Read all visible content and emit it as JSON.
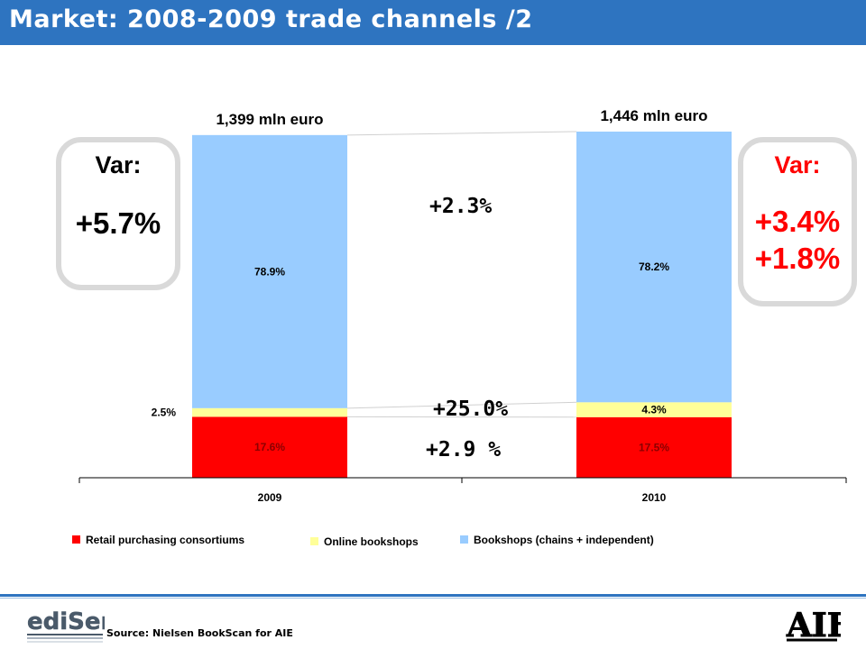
{
  "header": {
    "title": "Market: 2008-2009 trade channels /2"
  },
  "var_left": {
    "label": "Var:",
    "value": "+5.7%"
  },
  "var_right": {
    "label": "Var:",
    "value1": "+3.4%",
    "value2": "+1.8%"
  },
  "changes": {
    "bookshops": "+2.3%",
    "online": "+25.0%",
    "retail": "+2.9 %"
  },
  "chart_data": {
    "type": "bar",
    "stacked": true,
    "categories": [
      "2009",
      "2010"
    ],
    "totals": [
      "1,399 mln euro",
      "1,446 mln euro"
    ],
    "series": [
      {
        "name": "Retail purchasing consortiums",
        "values": [
          17.6,
          17.5
        ],
        "labels": [
          "17.6%",
          "17.5%"
        ],
        "color": "#ff0000"
      },
      {
        "name": "Online bookshops",
        "values": [
          2.5,
          4.3
        ],
        "labels": [
          "2.5%",
          "4.3%"
        ],
        "color": "#ffff99"
      },
      {
        "name": "Bookshops (chains + independent)",
        "values": [
          78.9,
          78.2
        ],
        "labels": [
          "78.9%",
          "78.2%"
        ],
        "color": "#99ccff"
      }
    ],
    "ylim": [
      0,
      100
    ],
    "grid": false,
    "legend": "bottom"
  },
  "footer": {
    "source": "Source: Nielsen BookScan for AIE",
    "logo_left": "ediSer",
    "logo_right": "AIE"
  },
  "colors": {
    "header": "#2e74c0",
    "accent": "#ff0000"
  }
}
